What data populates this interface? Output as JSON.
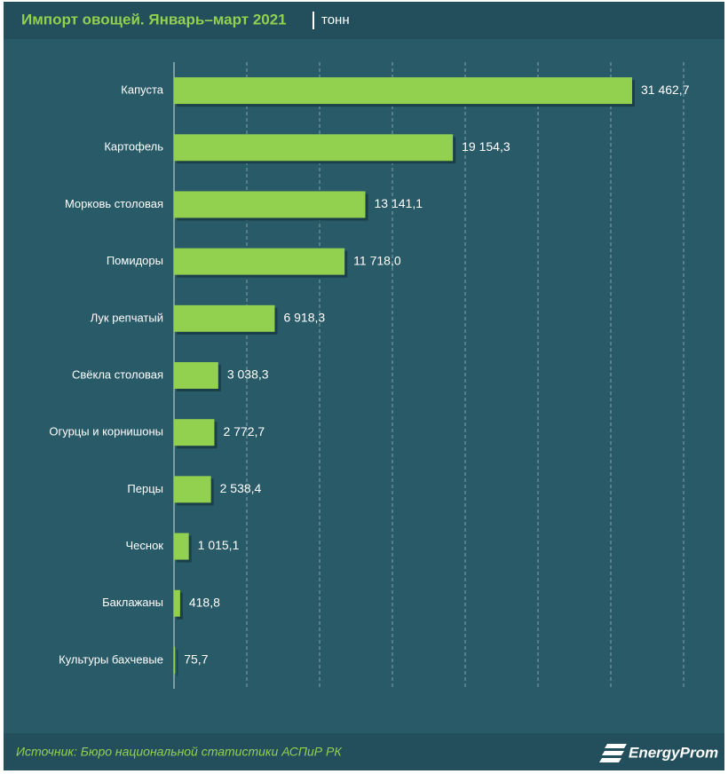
{
  "chart_data": {
    "type": "bar",
    "orientation": "horizontal",
    "title": "Импорт овощей. Январь–март 2021",
    "subtitle": "тонн",
    "source": "Источник: Бюро национальной  статистики АСПиР РК",
    "logo": "EnergyProm",
    "categories": [
      "Капуста",
      "Картофель",
      "Морковь столовая",
      "Помидоры",
      "Лук репчатый",
      "Свёкла столовая",
      "Огурцы и корнишоны",
      "Перцы",
      "Чеснок",
      "Баклажаны",
      "Культуры бахчевые"
    ],
    "values": [
      31462.7,
      19154.3,
      13141.1,
      11718.0,
      6918.3,
      3038.3,
      2772.7,
      2538.4,
      1015.1,
      418.8,
      75.7
    ],
    "value_labels": [
      "31 462,7",
      "19 154,3",
      "13 141,1",
      "11 718,0",
      "6 918,3",
      "3 038,3",
      "2 772,7",
      "2 538,4",
      "1 015,1",
      "418,8",
      "75,7"
    ],
    "color": "#92d050",
    "xlim": [
      0,
      35000
    ],
    "xticks": [
      0,
      5000,
      10000,
      15000,
      20000,
      25000,
      30000,
      35000
    ],
    "grid": true
  }
}
